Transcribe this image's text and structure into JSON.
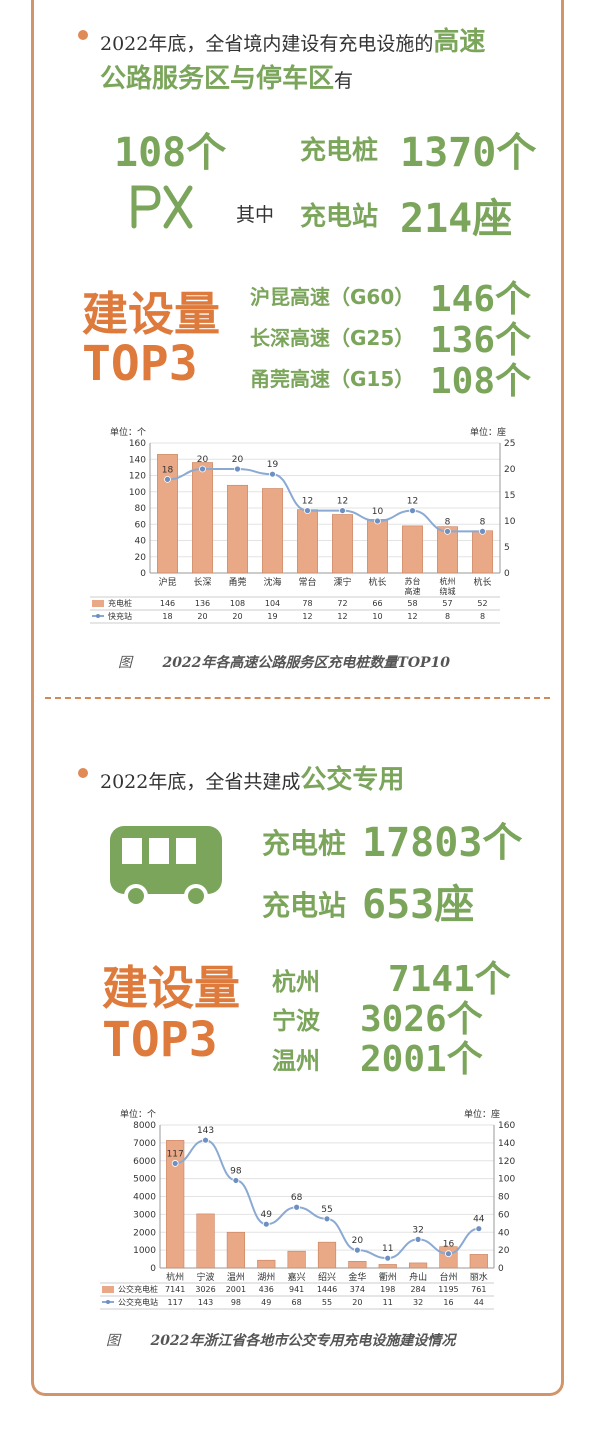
{
  "colors": {
    "green": "#7aa55a",
    "orange": "#dd7a3c",
    "bar": "#e9a886",
    "line": "#8aa9d3",
    "border": "#d2946a"
  },
  "icons": {
    "service_area": "knife-fork-icon",
    "bus": "bus-icon",
    "bullet": "dot-icon"
  },
  "highway": {
    "intro_text": "2022年底，全省境内建设有充电设施的",
    "intro_hl_1": "高速",
    "intro_hl_2": "公路服务区与停车区",
    "intro_tail": "有",
    "count": "108个",
    "pile_label": "充电桩",
    "pile_value": "1370个",
    "among": "其中",
    "station_label": "充电站",
    "station_value": "214座",
    "top3_title_1": "建设量",
    "top3_title_2": "TOP3",
    "top3": [
      {
        "name": "沪昆高速（G60）",
        "value": "146个"
      },
      {
        "name": "长深高速（G25）",
        "value": "136个"
      },
      {
        "name": "甬莞高速（G15）",
        "value": "108个"
      }
    ],
    "caption_prefix": "图",
    "caption": "2022年各高速公路服务区充电桩数量TOP10"
  },
  "bus": {
    "intro_text": "2022年底，全省共建成",
    "intro_hl": "公交专用",
    "pile_label": "充电桩",
    "pile_value": "17803个",
    "station_label": "充电站",
    "station_value": "653座",
    "top3_title_1": "建设量",
    "top3_title_2": "TOP3",
    "top3": [
      {
        "name": "杭州",
        "value": "7141个"
      },
      {
        "name": "宁波",
        "value": "3026个"
      },
      {
        "name": "温州",
        "value": "2001个"
      }
    ],
    "caption_prefix": "图",
    "caption": "2022年浙江省各地市公交专用充电设施建设情况"
  },
  "chart_data": [
    {
      "type": "bar",
      "left_unit": "单位：个",
      "right_unit": "单位：座",
      "categories": [
        "沪昆",
        "长深",
        "甬莞",
        "沈海",
        "常台",
        "溧宁",
        "杭长",
        "苏台高速",
        "杭州绕城",
        "杭长"
      ],
      "series": [
        {
          "name": "充电桩",
          "type": "bar",
          "axis": "left",
          "values": [
            146,
            136,
            108,
            104,
            78,
            72,
            66,
            58,
            57,
            52
          ]
        },
        {
          "name": "快充站",
          "type": "line",
          "axis": "right",
          "values": [
            18,
            20,
            20,
            19,
            12,
            12,
            10,
            12,
            8,
            8
          ]
        }
      ],
      "ylim_left": [
        0,
        160
      ],
      "yticks_left": [
        0,
        20,
        40,
        60,
        80,
        100,
        120,
        140,
        160
      ],
      "ylim_right": [
        0,
        25
      ],
      "yticks_right": [
        0,
        5,
        10,
        15,
        20,
        25
      ],
      "table": true
    },
    {
      "type": "bar",
      "left_unit": "单位：个",
      "right_unit": "单位：座",
      "categories": [
        "杭州",
        "宁波",
        "温州",
        "湖州",
        "嘉兴",
        "绍兴",
        "金华",
        "衢州",
        "舟山",
        "台州",
        "丽水"
      ],
      "series": [
        {
          "name": "公交充电桩",
          "type": "bar",
          "axis": "left",
          "values": [
            7141,
            3026,
            2001,
            436,
            941,
            1446,
            374,
            198,
            284,
            1195,
            761
          ]
        },
        {
          "name": "公交充电站",
          "type": "line",
          "axis": "right",
          "values": [
            117,
            143,
            98,
            49,
            68,
            55,
            20,
            11,
            32,
            16,
            44
          ]
        }
      ],
      "ylim_left": [
        0,
        8000
      ],
      "yticks_left": [
        0,
        1000,
        2000,
        3000,
        4000,
        5000,
        6000,
        7000,
        8000
      ],
      "ylim_right": [
        0,
        160
      ],
      "yticks_right": [
        0,
        20,
        40,
        60,
        80,
        100,
        120,
        140,
        160
      ],
      "table": true
    }
  ]
}
